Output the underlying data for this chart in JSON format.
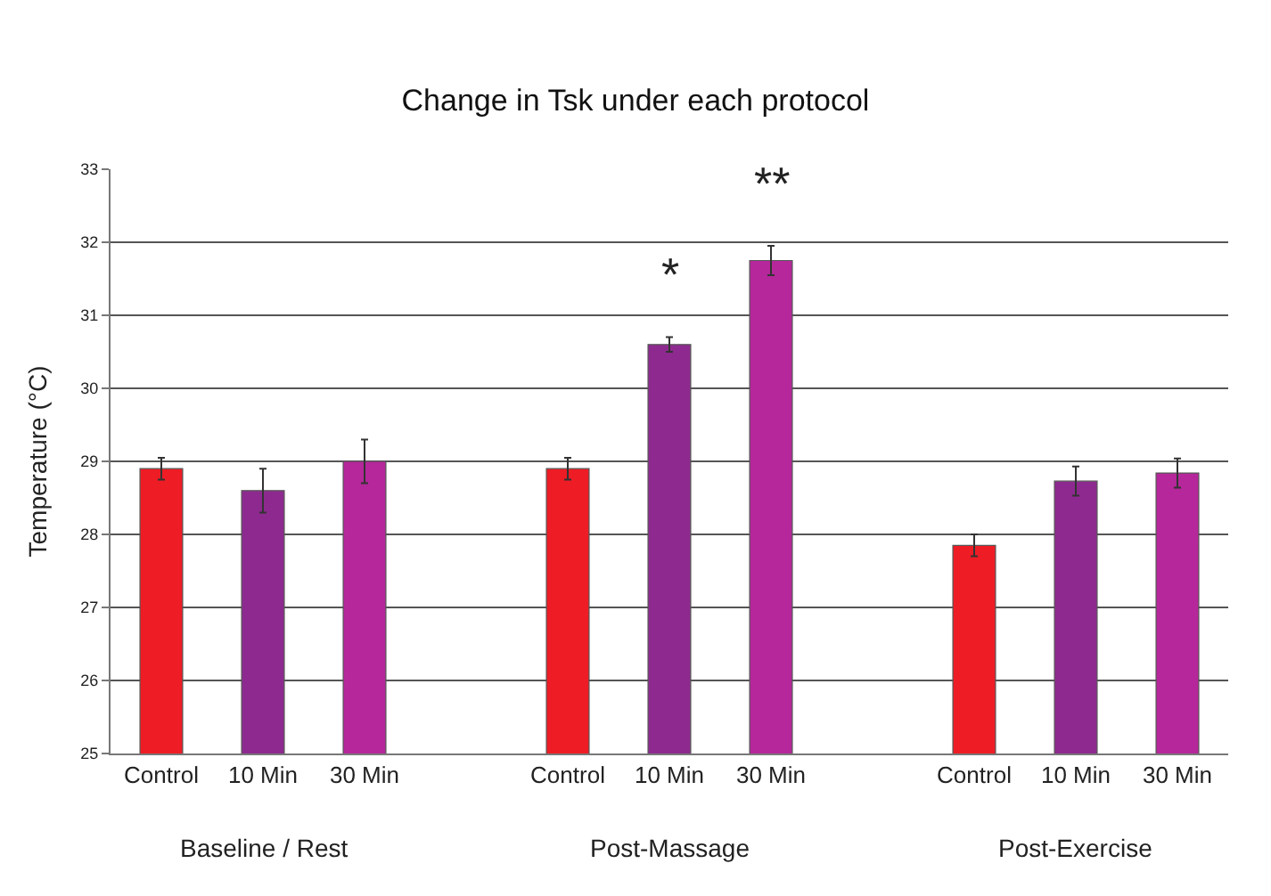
{
  "chart_data": {
    "type": "bar",
    "title": "Change in Tsk under each protocol",
    "ylabel": "Temperature (°C)",
    "categories": [
      "Control",
      "10 Min",
      "30 Min",
      null,
      "Control",
      "10 Min",
      "30 Min",
      null,
      "Control",
      "10 Min",
      "30 Min"
    ],
    "values": [
      28.9,
      28.6,
      29.0,
      null,
      28.9,
      30.6,
      31.75,
      null,
      27.85,
      28.73,
      28.84
    ],
    "errors": [
      0.15,
      0.3,
      0.3,
      null,
      0.15,
      0.1,
      0.2,
      null,
      0.15,
      0.2,
      0.2
    ],
    "value_labels": [
      null,
      null,
      null,
      null,
      null,
      "*",
      "**",
      null,
      null,
      null,
      null
    ],
    "colors": [
      "#ee1c25",
      "#8e2a8f",
      "#b5279a",
      "#ffffff",
      "#ee1c25",
      "#8e2a8f",
      "#b5279a",
      "#ffffff",
      "#ee1c25",
      "#8e2a8f",
      "#b5279a"
    ],
    "annotations": [
      "Baseline / Rest",
      "Post-Massage",
      "Post-Exercise"
    ],
    "ylim": [
      25,
      33
    ],
    "yticks": [
      25,
      26,
      27,
      28,
      29,
      30,
      31,
      32,
      33
    ],
    "grid": "y"
  }
}
